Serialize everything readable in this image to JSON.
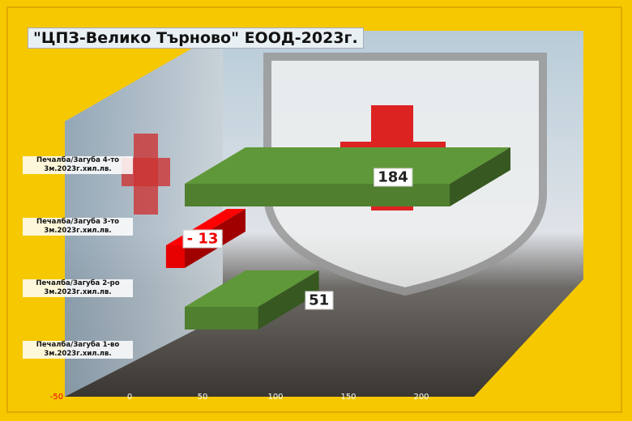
{
  "chart_data": {
    "type": "bar3d-horizontal",
    "title": "\"ЦПЗ-Велико Търново\" ЕООД-2023г.",
    "categories": [
      "Печалба/Загуба 1-во 3м.2023г.хил.лв.",
      "Печалба/Загуба 2-ро 3м.2023г.хил.лв.",
      "Печалба/Загуба 3-то 3м.2023г.хил.лв.",
      "Печалба/Загуба 4-то 3м.2023г.хил.лв."
    ],
    "values": [
      null,
      51,
      -13,
      184
    ],
    "value_labels": [
      null,
      "51",
      "- 13",
      "184"
    ],
    "positive_color": "#4f7f2f",
    "negative_color": "#e60000",
    "xlim": [
      -50,
      200
    ],
    "xticks": [
      -50,
      0,
      50,
      100,
      150,
      200
    ]
  }
}
